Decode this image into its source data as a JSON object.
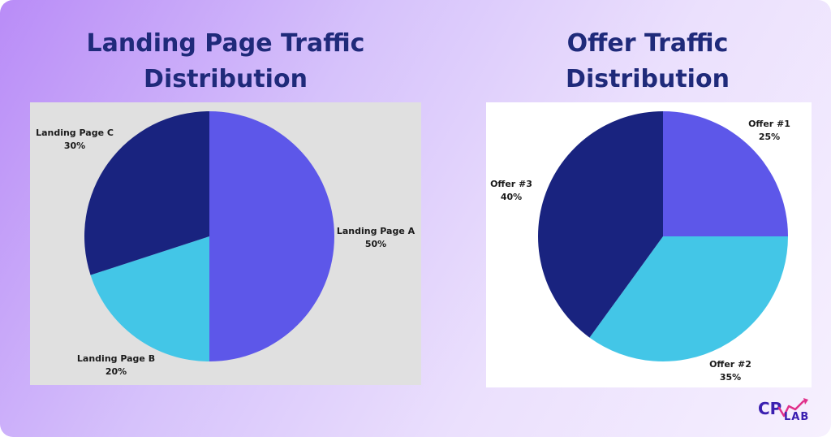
{
  "chart_data": [
    {
      "type": "pie",
      "title_lines": [
        "Landing Page Traffic",
        "Distribution"
      ],
      "categories": [
        "Landing Page A",
        "Landing Page B",
        "Landing Page C"
      ],
      "values": [
        50,
        20,
        30
      ],
      "value_labels": [
        "50%",
        "20%",
        "30%"
      ],
      "colors": [
        "#5d57e9",
        "#43c6e7",
        "#19237f"
      ],
      "background": "#e0e0e0"
    },
    {
      "type": "pie",
      "title_lines": [
        "Offer Traffic",
        "Distribution"
      ],
      "categories": [
        "Offer #1",
        "Offer #2",
        "Offer #3"
      ],
      "values": [
        25,
        35,
        40
      ],
      "value_labels": [
        "25%",
        "35%",
        "40%"
      ],
      "colors": [
        "#5d57e9",
        "#43c6e7",
        "#19237f"
      ],
      "background": "#ffffff"
    }
  ],
  "logo": {
    "text_cp": "CP",
    "text_lab": "LAB",
    "icon": "trend-arrow-icon",
    "colors": [
      "#3a1fb0",
      "#e0308a"
    ]
  }
}
